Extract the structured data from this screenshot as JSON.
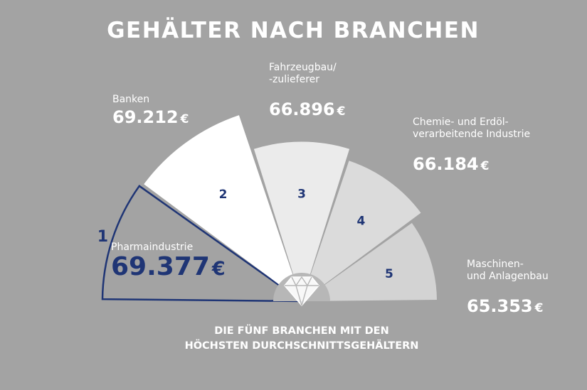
{
  "chart_data": {
    "type": "pie",
    "title": "GEHÄLTER NACH BRANCHEN",
    "subtitle_lines": [
      "DIE FÜNF BRANCHEN MIT DEN",
      "HÖCHSTEN DURCHSCHNITTSGEHÄLTERN"
    ],
    "currency": "€",
    "slices": [
      {
        "rank": "1",
        "label_lines": [
          "Pharmaindustrie"
        ],
        "value": 69377,
        "value_text": "69.377",
        "fill": "none",
        "stroke": "#1f3575"
      },
      {
        "rank": "2",
        "label_lines": [
          "Banken"
        ],
        "value": 69212,
        "value_text": "69.212",
        "fill": "#ffffff"
      },
      {
        "rank": "3",
        "label_lines": [
          "Fahrzeugbau/",
          "-zulieferer"
        ],
        "value": 66896,
        "value_text": "66.896",
        "fill": "#ebebeb"
      },
      {
        "rank": "4",
        "label_lines": [
          "Chemie- und Erdöl-",
          "verarbeitende Industrie"
        ],
        "value": 66184,
        "value_text": "66.184",
        "fill": "#dbdbdb"
      },
      {
        "rank": "5",
        "label_lines": [
          "Maschinen-",
          "und Anlagenbau"
        ],
        "value": 65353,
        "value_text": "65.353",
        "fill": "#d3d3d3"
      }
    ]
  },
  "colors": {
    "background": "#a3a3a3",
    "accent": "#1f3575",
    "text": "#ffffff",
    "hub": "#b7b7b7"
  },
  "icon": "diamond-icon"
}
